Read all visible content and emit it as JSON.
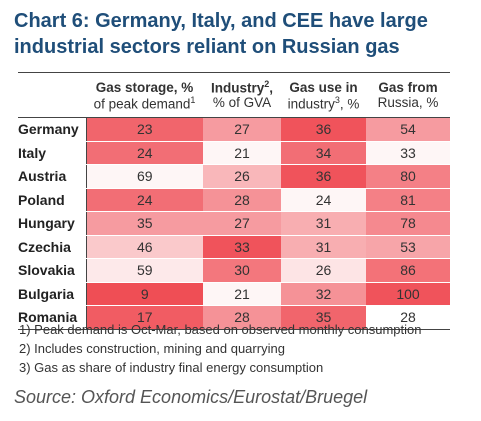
{
  "title_line1": "Chart 6: Germany, Italy, and CEE have large",
  "title_line2": "industrial sectors reliant on Russian gas",
  "headers": [
    {
      "top": "Gas storage, %",
      "bottom": "of peak demand",
      "sup": "1",
      "sup_pos": "bottom"
    },
    {
      "top": "Industry",
      "bottom": "% of GVA",
      "sup": "2",
      "sup_pos": "top"
    },
    {
      "top": "Gas use in",
      "bottom": "industry",
      "bottom_suffix": ", %",
      "sup": "3",
      "sup_pos": "bottom"
    },
    {
      "top": "Gas from",
      "bottom": "Russia, %",
      "sup": "",
      "sup_pos": "none"
    }
  ],
  "colors": {
    "low": "#ffffff",
    "high": "#ef4a52"
  },
  "chart_data": {
    "type": "heatmap",
    "rows": [
      "Germany",
      "Italy",
      "Austria",
      "Poland",
      "Hungary",
      "Czechia",
      "Slovakia",
      "Bulgaria",
      "Romania"
    ],
    "columns": [
      "Gas storage, % of peak demand",
      "Industry, % of GVA",
      "Gas use in industry, %",
      "Gas from Russia, %"
    ],
    "values": [
      [
        23,
        27,
        36,
        54
      ],
      [
        24,
        21,
        34,
        33
      ],
      [
        69,
        26,
        36,
        80
      ],
      [
        24,
        28,
        24,
        81
      ],
      [
        35,
        27,
        31,
        78
      ],
      [
        46,
        33,
        31,
        53
      ],
      [
        59,
        30,
        26,
        86
      ],
      [
        9,
        21,
        32,
        100
      ],
      [
        17,
        28,
        35,
        28
      ]
    ],
    "color_intensity": [
      [
        0.85,
        0.55,
        0.95,
        0.55
      ],
      [
        0.8,
        0.05,
        0.8,
        0.05
      ],
      [
        0.05,
        0.4,
        0.95,
        0.7
      ],
      [
        0.8,
        0.6,
        0.05,
        0.7
      ],
      [
        0.55,
        0.55,
        0.45,
        0.65
      ],
      [
        0.3,
        0.95,
        0.45,
        0.5
      ],
      [
        0.12,
        0.75,
        0.15,
        0.78
      ],
      [
        0.98,
        0.05,
        0.6,
        0.95
      ],
      [
        0.9,
        0.6,
        0.85,
        0.0
      ]
    ]
  },
  "notes": [
    "1) Peak demand is Oct-Mar, based on observed monthly consumption",
    "2) Includes construction, mining and quarrying",
    "3) Gas as share of industry final energy consumption"
  ],
  "source": "Source: Oxford Economics/Eurostat/Bruegel"
}
